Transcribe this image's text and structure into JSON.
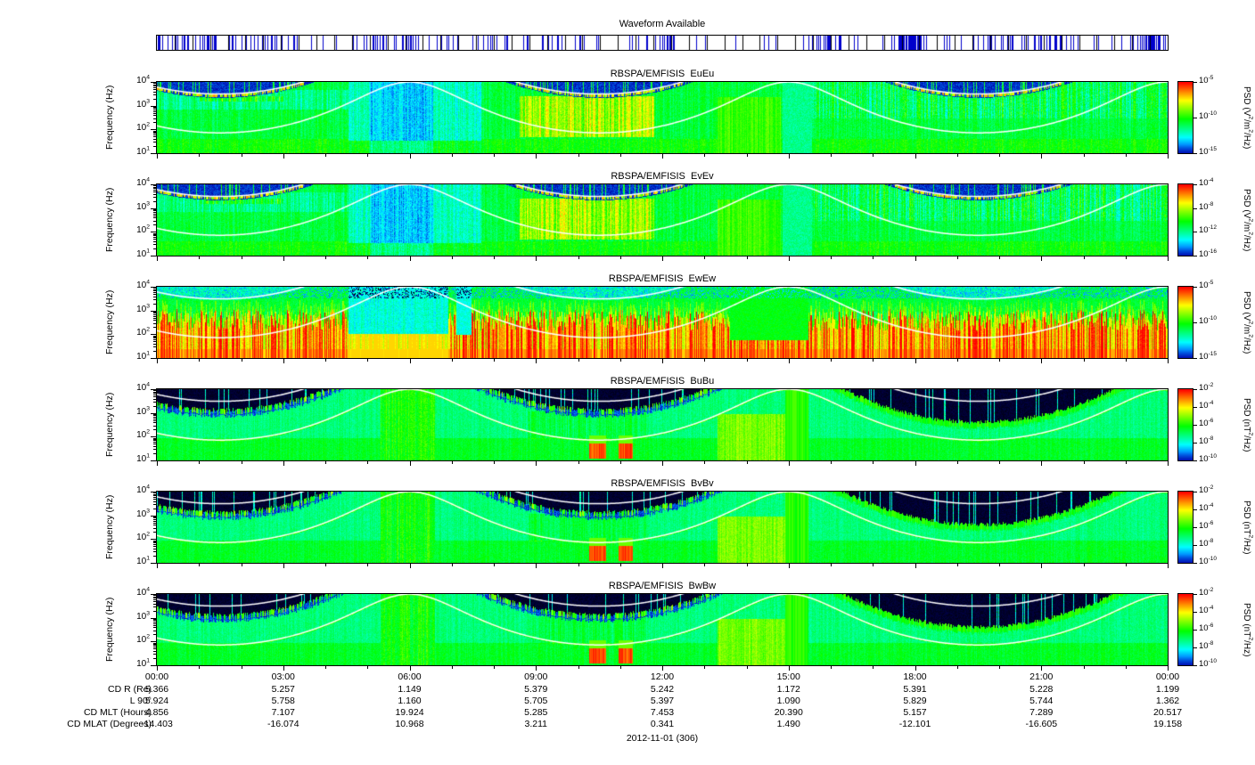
{
  "chart_data": {
    "type": "heatmap",
    "date": "2012-11-01 (306)",
    "waveform_bar": {
      "title": "Waveform Available",
      "line_color": "#0000cc",
      "divisions": 57,
      "base_density": 0.1,
      "clusters": [
        [
          0.05,
          0.05,
          0.5
        ],
        [
          0.24,
          0.03,
          0.45
        ],
        [
          0.375,
          0.035,
          0.5
        ],
        [
          0.5,
          0.012,
          0.35
        ],
        [
          0.667,
          0.012,
          0.9
        ],
        [
          0.744,
          0.012,
          0.85
        ],
        [
          0.875,
          0.03,
          0.6
        ],
        [
          0.99,
          0.01,
          0.9
        ]
      ]
    },
    "x_axis": {
      "tick_labels": [
        "00:00",
        "03:00",
        "06:00",
        "09:00",
        "12:00",
        "15:00",
        "18:00",
        "21:00",
        "00:00"
      ],
      "range_hours": [
        0,
        24
      ]
    },
    "y_axis": {
      "label": "Frequency (Hz)",
      "scale": "log",
      "range_hz": [
        10,
        10000
      ],
      "tick_exponents": [
        1,
        2,
        3,
        4
      ]
    },
    "panels": [
      {
        "title": "RBSPA/EMFISIS  EuEu",
        "style": "E",
        "seed": 1101,
        "colorbar": {
          "label": "PSD (V^2/m^2/Hz)",
          "top_exp": -5,
          "bottom_exp": -15,
          "tick_exponents": [
            -5,
            -10,
            -15
          ]
        }
      },
      {
        "title": "RBSPA/EMFISIS  EvEv",
        "style": "E",
        "seed": 2203,
        "colorbar": {
          "label": "PSD (V^2/m^2/Hz)",
          "top_exp": -4,
          "bottom_exp": -16,
          "tick_exponents": [
            -4,
            -8,
            -12,
            -16
          ]
        }
      },
      {
        "title": "RBSPA/EMFISIS  EwEw",
        "style": "Ew",
        "seed": 3307,
        "colorbar": {
          "label": "PSD (V^2/m^2/Hz)",
          "top_exp": -5,
          "bottom_exp": -15,
          "tick_exponents": [
            -5,
            -10,
            -15
          ]
        }
      },
      {
        "title": "RBSPA/EMFISIS  BuBu",
        "style": "B",
        "seed": 4409,
        "colorbar": {
          "label": "PSD (nT^2/Hz)",
          "top_exp": -2,
          "bottom_exp": -10,
          "tick_exponents": [
            -2,
            -4,
            -6,
            -8,
            -10
          ]
        }
      },
      {
        "title": "RBSPA/EMFISIS  BvBv",
        "style": "B",
        "seed": 5501,
        "colorbar": {
          "label": "PSD (nT^2/Hz)",
          "top_exp": -2,
          "bottom_exp": -10,
          "tick_exponents": [
            -2,
            -4,
            -6,
            -8,
            -10
          ]
        }
      },
      {
        "title": "RBSPA/EMFISIS  BwBw",
        "style": "B",
        "seed": 6607,
        "colorbar": {
          "label": "PSD (nT^2/Hz)",
          "top_exp": -2,
          "bottom_exp": -10,
          "tick_exponents": [
            -2,
            -4,
            -6,
            -8,
            -10
          ]
        }
      }
    ],
    "overlay_curves": {
      "count": 2,
      "color": "#ffffff",
      "description": "electron cyclotron frequency line and lower companion line"
    },
    "render_hints": {
      "orbit": {
        "perigee_hours": [
          6.0,
          15.0,
          24.0
        ],
        "period_hours": 9.0,
        "r_perigee": 1.15,
        "r_apogee": 5.95
      },
      "fce_constant": 650000,
      "lower_curve_divisor": 43
    },
    "ephemeris": {
      "rows": [
        {
          "label": "CD R (Re)",
          "values": [
            "5.366",
            "5.257",
            "1.149",
            "5.379",
            "5.242",
            "1.172",
            "5.391",
            "5.228",
            "1.199"
          ]
        },
        {
          "label": "L 90°",
          "values": [
            "5.924",
            "5.758",
            "1.160",
            "5.705",
            "5.397",
            "1.090",
            "5.829",
            "5.744",
            "1.362"
          ]
        },
        {
          "label": "CD MLT (Hours)",
          "values": [
            "4.856",
            "7.107",
            "19.924",
            "5.285",
            "7.453",
            "20.390",
            "5.157",
            "7.289",
            "20.517"
          ]
        },
        {
          "label": "CD MLAT (Degrees)",
          "values": [
            "-14.403",
            "-16.074",
            "10.968",
            "3.211",
            "0.341",
            "1.490",
            "-12.101",
            "-16.605",
            "19.158"
          ]
        }
      ]
    }
  }
}
